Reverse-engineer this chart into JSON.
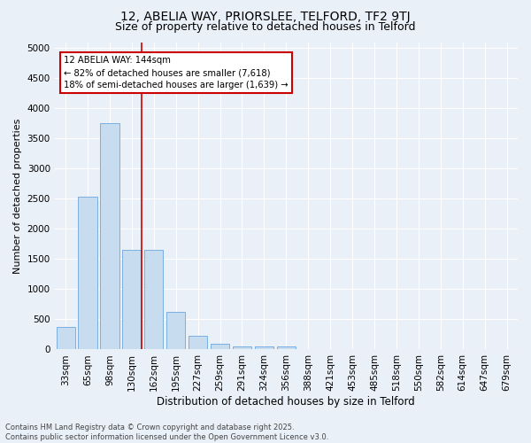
{
  "title1": "12, ABELIA WAY, PRIORSLEE, TELFORD, TF2 9TJ",
  "title2": "Size of property relative to detached houses in Telford",
  "xlabel": "Distribution of detached houses by size in Telford",
  "ylabel": "Number of detached properties",
  "categories": [
    "33sqm",
    "65sqm",
    "98sqm",
    "130sqm",
    "162sqm",
    "195sqm",
    "227sqm",
    "259sqm",
    "291sqm",
    "324sqm",
    "356sqm",
    "388sqm",
    "421sqm",
    "453sqm",
    "485sqm",
    "518sqm",
    "550sqm",
    "582sqm",
    "614sqm",
    "647sqm",
    "679sqm"
  ],
  "values": [
    370,
    2530,
    3760,
    1650,
    1650,
    620,
    220,
    100,
    55,
    55,
    55,
    0,
    0,
    0,
    0,
    0,
    0,
    0,
    0,
    0,
    0
  ],
  "bar_color": "#c8dcf0",
  "bar_edge_color": "#7aafe0",
  "vline_color": "#cc0000",
  "annotation_text": "12 ABELIA WAY: 144sqm\n← 82% of detached houses are smaller (7,618)\n18% of semi-detached houses are larger (1,639) →",
  "annotation_box_color": "#ffffff",
  "annotation_box_edge": "#cc0000",
  "ylim": [
    0,
    5100
  ],
  "yticks": [
    0,
    500,
    1000,
    1500,
    2000,
    2500,
    3000,
    3500,
    4000,
    4500,
    5000
  ],
  "bg_color": "#eaf0f8",
  "footer_text": "Contains HM Land Registry data © Crown copyright and database right 2025.\nContains public sector information licensed under the Open Government Licence v3.0.",
  "title1_fontsize": 10,
  "title2_fontsize": 9,
  "xlabel_fontsize": 8.5,
  "ylabel_fontsize": 8,
  "tick_fontsize": 7.5,
  "footer_fontsize": 6,
  "vline_x": 3.44
}
